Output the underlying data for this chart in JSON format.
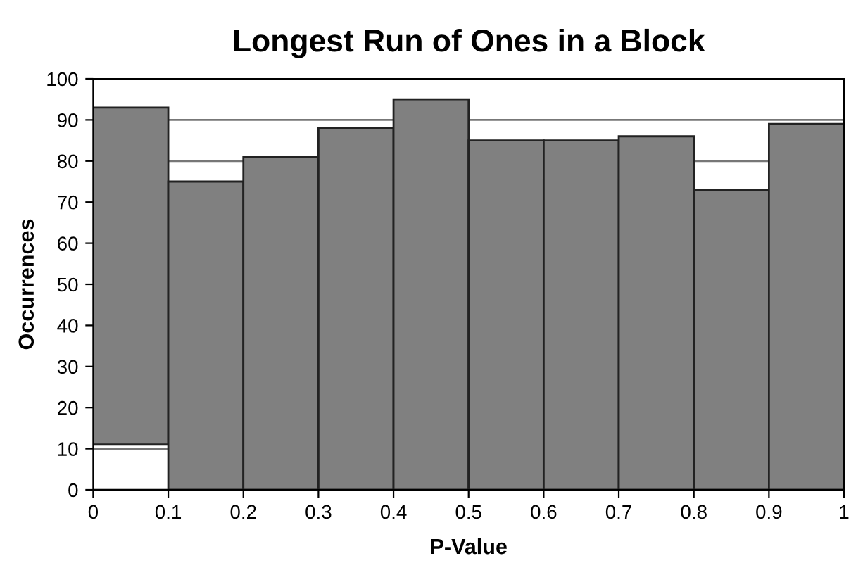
{
  "chart_data": {
    "type": "bar",
    "title": "Longest Run of Ones in a Block",
    "xlabel": "P-Value",
    "ylabel": "Occurrences",
    "x": [
      0.05,
      0.15,
      0.25,
      0.35,
      0.45,
      0.55,
      0.65,
      0.75,
      0.85,
      0.95
    ],
    "base": [
      11,
      0,
      0,
      0,
      0,
      0,
      0,
      0,
      0,
      0
    ],
    "values": [
      82,
      75,
      81,
      88,
      95,
      85,
      85,
      86,
      73,
      89
    ],
    "color": "#808080",
    "xlim": [
      0,
      1
    ],
    "xticks": [
      0,
      0.1,
      0.2,
      0.3,
      0.4,
      0.5,
      0.6,
      0.7,
      0.8,
      0.9,
      1
    ],
    "ylim": [
      0,
      100
    ],
    "yticks": [
      0,
      10,
      20,
      30,
      40,
      50,
      60,
      70,
      80,
      90,
      100
    ],
    "grid": "y"
  }
}
